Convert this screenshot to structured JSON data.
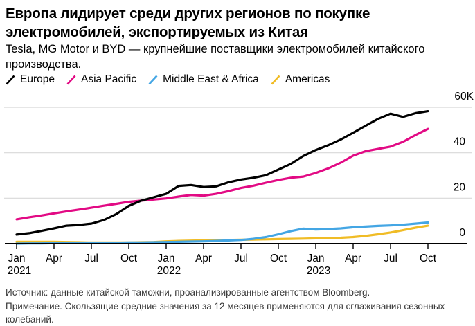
{
  "header": {
    "title": "Европа лидирует среди других регионов по покупке электромобилей, экспортируемых из Китая",
    "subtitle": "Tesla, MG Motor и BYD — крупнейшие поставщики электромобилей китайского производства."
  },
  "footer": {
    "source": "Источник: данные китайской таможни, проанализированные агентством Bloomberg.",
    "note": "Примечание. Скользящие средние значения за 12 месяцев применяются для сглаживания сезонных колебаний."
  },
  "chart_data": {
    "type": "line",
    "title": "Европа лидирует среди других регионов по покупке электромобилей, экспортируемых из Китая",
    "unit_suffix": "K",
    "ylim": [
      0,
      60
    ],
    "grid": true,
    "layout": {
      "legend_position": "top-left",
      "y_labels_side": "right",
      "background": "#ffffff",
      "gridline_color": "#d8d8d8",
      "axis_color": "#000000"
    },
    "months": [
      "Jan 2021",
      "Feb 2021",
      "Mar 2021",
      "Apr 2021",
      "May 2021",
      "Jun 2021",
      "Jul 2021",
      "Aug 2021",
      "Sep 2021",
      "Oct 2021",
      "Nov 2021",
      "Dec 2021",
      "Jan 2022",
      "Feb 2022",
      "Mar 2022",
      "Apr 2022",
      "May 2022",
      "Jun 2022",
      "Jul 2022",
      "Aug 2022",
      "Sep 2022",
      "Oct 2022",
      "Nov 2022",
      "Dec 2022",
      "Jan 2023",
      "Feb 2023",
      "Mar 2023",
      "Apr 2023",
      "May 2023",
      "Jun 2023",
      "Jul 2023",
      "Aug 2023",
      "Sep 2023",
      "Oct 2023"
    ],
    "x_axis": {
      "ticks": [
        {
          "index": 0,
          "label": "Jan",
          "year": "2021"
        },
        {
          "index": 3,
          "label": "Apr"
        },
        {
          "index": 6,
          "label": "Jul"
        },
        {
          "index": 9,
          "label": "Oct"
        },
        {
          "index": 12,
          "label": "Jan",
          "year": "2022"
        },
        {
          "index": 15,
          "label": "Apr"
        },
        {
          "index": 18,
          "label": "Jul"
        },
        {
          "index": 21,
          "label": "Oct"
        },
        {
          "index": 24,
          "label": "Jan",
          "year": "2023"
        },
        {
          "index": 27,
          "label": "Apr"
        },
        {
          "index": 30,
          "label": "Jul"
        },
        {
          "index": 33,
          "label": "Oct"
        }
      ]
    },
    "y_axis": {
      "ticks": [
        {
          "value": 0,
          "label": "0"
        },
        {
          "value": 20,
          "label": "20"
        },
        {
          "value": 40,
          "label": "40"
        },
        {
          "value": 60,
          "label": "60K"
        }
      ]
    },
    "series": [
      {
        "name": "Europe",
        "color": "#000000",
        "values": [
          4.0,
          4.6,
          5.6,
          6.7,
          7.9,
          8.2,
          8.8,
          10.4,
          13.0,
          16.6,
          18.9,
          20.4,
          21.9,
          25.4,
          25.8,
          24.9,
          25.2,
          27.0,
          28.2,
          29.0,
          30.1,
          32.6,
          35.1,
          38.6,
          41.2,
          43.3,
          45.8,
          48.8,
          51.9,
          54.9,
          57.2,
          55.8,
          57.4,
          58.3
        ]
      },
      {
        "name": "Asia Pacific",
        "color": "#e20a84",
        "values": [
          10.7,
          11.6,
          12.4,
          13.3,
          14.2,
          15.0,
          15.8,
          16.7,
          17.5,
          18.4,
          18.9,
          19.4,
          19.9,
          20.7,
          21.4,
          21.1,
          21.9,
          23.1,
          24.5,
          25.5,
          26.8,
          28.0,
          29.0,
          29.5,
          31.1,
          33.1,
          35.6,
          38.7,
          40.7,
          41.7,
          42.7,
          44.8,
          47.8,
          50.5
        ]
      },
      {
        "name": "Middle East & Africa",
        "color": "#44a6e4",
        "values": [
          0.0,
          0.1,
          0.1,
          0.2,
          0.2,
          0.3,
          0.3,
          0.4,
          0.4,
          0.5,
          0.5,
          0.6,
          0.7,
          0.8,
          0.9,
          1.0,
          1.2,
          1.4,
          1.6,
          2.1,
          2.9,
          4.1,
          5.5,
          6.6,
          6.2,
          6.4,
          6.7,
          7.2,
          7.5,
          7.8,
          8.0,
          8.3,
          8.8,
          9.3
        ]
      },
      {
        "name": "Americas",
        "color": "#f0bc26",
        "values": [
          0.8,
          0.8,
          0.8,
          0.8,
          0.7,
          0.6,
          0.5,
          0.5,
          0.5,
          0.5,
          0.6,
          0.7,
          1.0,
          1.2,
          1.3,
          1.4,
          1.5,
          1.6,
          1.7,
          1.8,
          1.9,
          2.0,
          2.1,
          2.2,
          2.3,
          2.4,
          2.6,
          2.9,
          3.4,
          4.1,
          4.9,
          5.9,
          7.0,
          7.9
        ]
      }
    ]
  }
}
